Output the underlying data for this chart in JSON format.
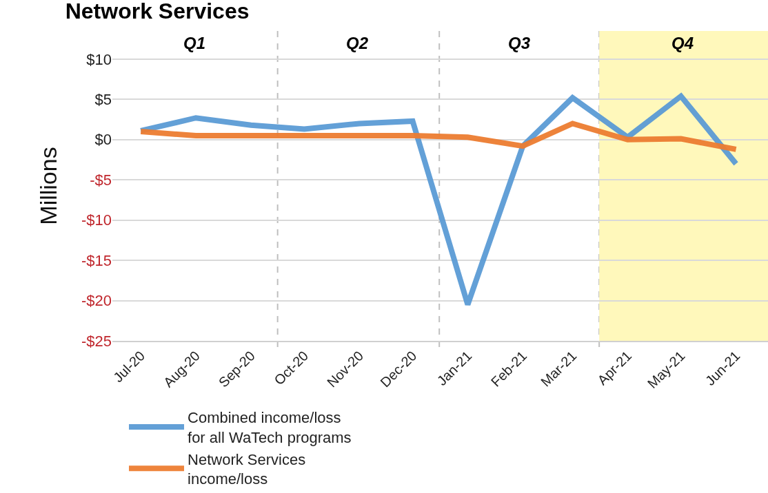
{
  "chart_data": {
    "type": "line",
    "title": "Network Services",
    "ylabel": "Millions",
    "x": [
      "2020-07",
      "2020-08",
      "2020-09",
      "2020-10",
      "2020-11",
      "2020-12",
      "2021-01",
      "2021-02",
      "2021-03",
      "2021-04",
      "2021-05",
      "2021-06"
    ],
    "series": [
      {
        "name": "Combined income/loss for all WaTech programs",
        "color": "#5b9bd5",
        "values": [
          1.1,
          2.7,
          1.8,
          1.3,
          2.0,
          2.3,
          -20.5,
          -0.8,
          5.2,
          0.3,
          5.4,
          -3.0
        ]
      },
      {
        "name": "Network Services income/loss",
        "color": "#ed7d31",
        "values": [
          1.0,
          0.5,
          0.5,
          0.5,
          0.5,
          0.5,
          0.3,
          -0.8,
          2.0,
          0.0,
          0.1,
          -1.2
        ]
      }
    ],
    "xlim": [
      "2020-06-15",
      "2021-06-19"
    ],
    "xticks": [
      {
        "value": "2020-07",
        "label": "Jul-20"
      },
      {
        "value": "2020-08",
        "label": "Aug-20"
      },
      {
        "value": "2020-09",
        "label": "Sep-20"
      },
      {
        "value": "2020-10",
        "label": "Oct-20"
      },
      {
        "value": "2020-11",
        "label": "Nov-20"
      },
      {
        "value": "2020-12",
        "label": "Dec-20"
      },
      {
        "value": "2021-01",
        "label": "Jan-21"
      },
      {
        "value": "2021-02",
        "label": "Feb-21"
      },
      {
        "value": "2021-03",
        "label": "Mar-21"
      },
      {
        "value": "2021-04",
        "label": "Apr-21"
      },
      {
        "value": "2021-05",
        "label": "May-21"
      },
      {
        "value": "2021-06",
        "label": "Jun-21"
      }
    ],
    "ylim": [
      -25,
      13.5
    ],
    "yticks": [
      {
        "value": 10,
        "label": "$10"
      },
      {
        "value": 5,
        "label": "$5"
      },
      {
        "value": 0,
        "label": "$0"
      },
      {
        "value": -5,
        "label": "-$5"
      },
      {
        "value": -10,
        "label": "-$10"
      },
      {
        "value": -15,
        "label": "-$15"
      },
      {
        "value": -20,
        "label": "-$20"
      },
      {
        "value": -25,
        "label": "-$25"
      }
    ],
    "annotations": [
      "Q1",
      "Q2",
      "Q3"
    ],
    "ref_lines": [
      {
        "axis": "x",
        "value": "2020-09-16",
        "line_style": "dashed",
        "color": "#bfbfbf"
      },
      {
        "axis": "x",
        "value": "2020-12-16",
        "line_style": "dashed",
        "color": "#bfbfbf"
      },
      {
        "axis": "x",
        "value": "2021-03-16",
        "line_style": "dashed",
        "color": "#bfbfbf"
      }
    ],
    "bands": [
      {
        "axis": "x",
        "from": "2021-03-16",
        "to": "2021-06-19",
        "label": "Q4",
        "color": "#fff8bb"
      }
    ],
    "grid": "y",
    "legend": "bottom",
    "line_style": "solid",
    "marker": "none"
  }
}
